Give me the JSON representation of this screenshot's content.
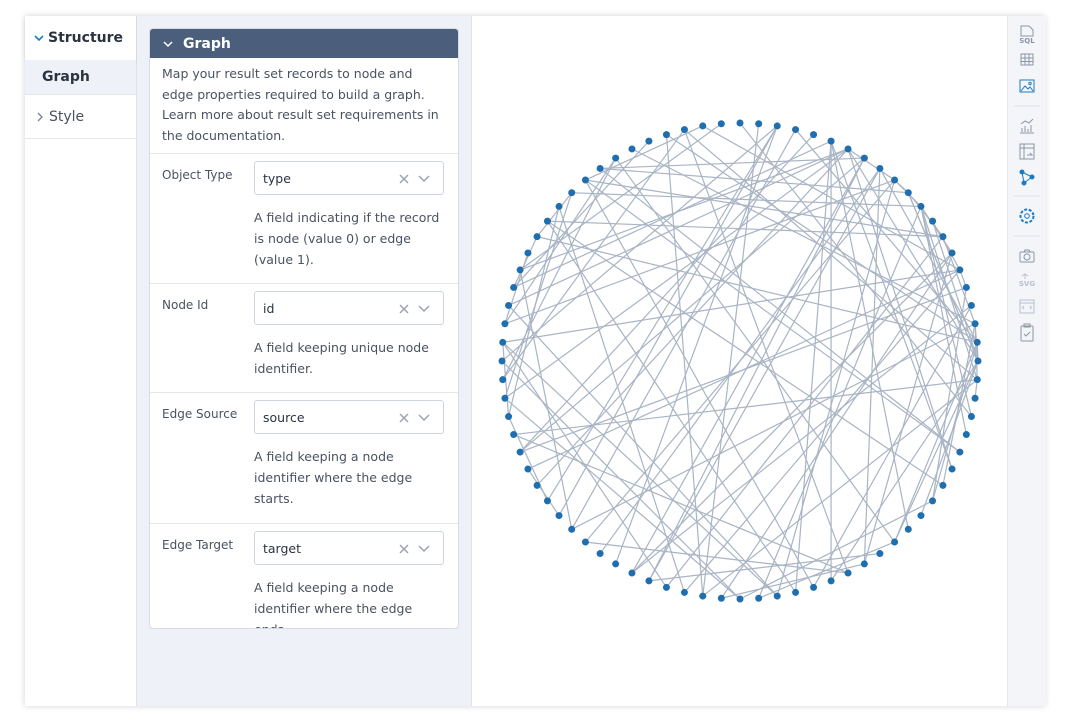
{
  "nav": {
    "structure": "Structure",
    "items": [
      "Graph",
      "Style"
    ]
  },
  "panel": {
    "title": "Graph",
    "description": "Map your result set records to node and edge properties required to build a graph. Learn more about result set requirements in the documentation.",
    "fields": [
      {
        "label": "Object Type",
        "value": "type",
        "help": "A field indicating if the record is node (value 0) or edge (value 1)."
      },
      {
        "label": "Node Id",
        "value": "id",
        "help": "A field keeping unique node identifier."
      },
      {
        "label": "Edge Source",
        "value": "source",
        "help": "A field keeping a node identifier where the edge starts."
      },
      {
        "label": "Edge Target",
        "value": "target",
        "help": "A field keeping a node identifier where the edge ends."
      }
    ]
  },
  "toolbar": {
    "sql": "SQL",
    "svg": "SVG"
  }
}
